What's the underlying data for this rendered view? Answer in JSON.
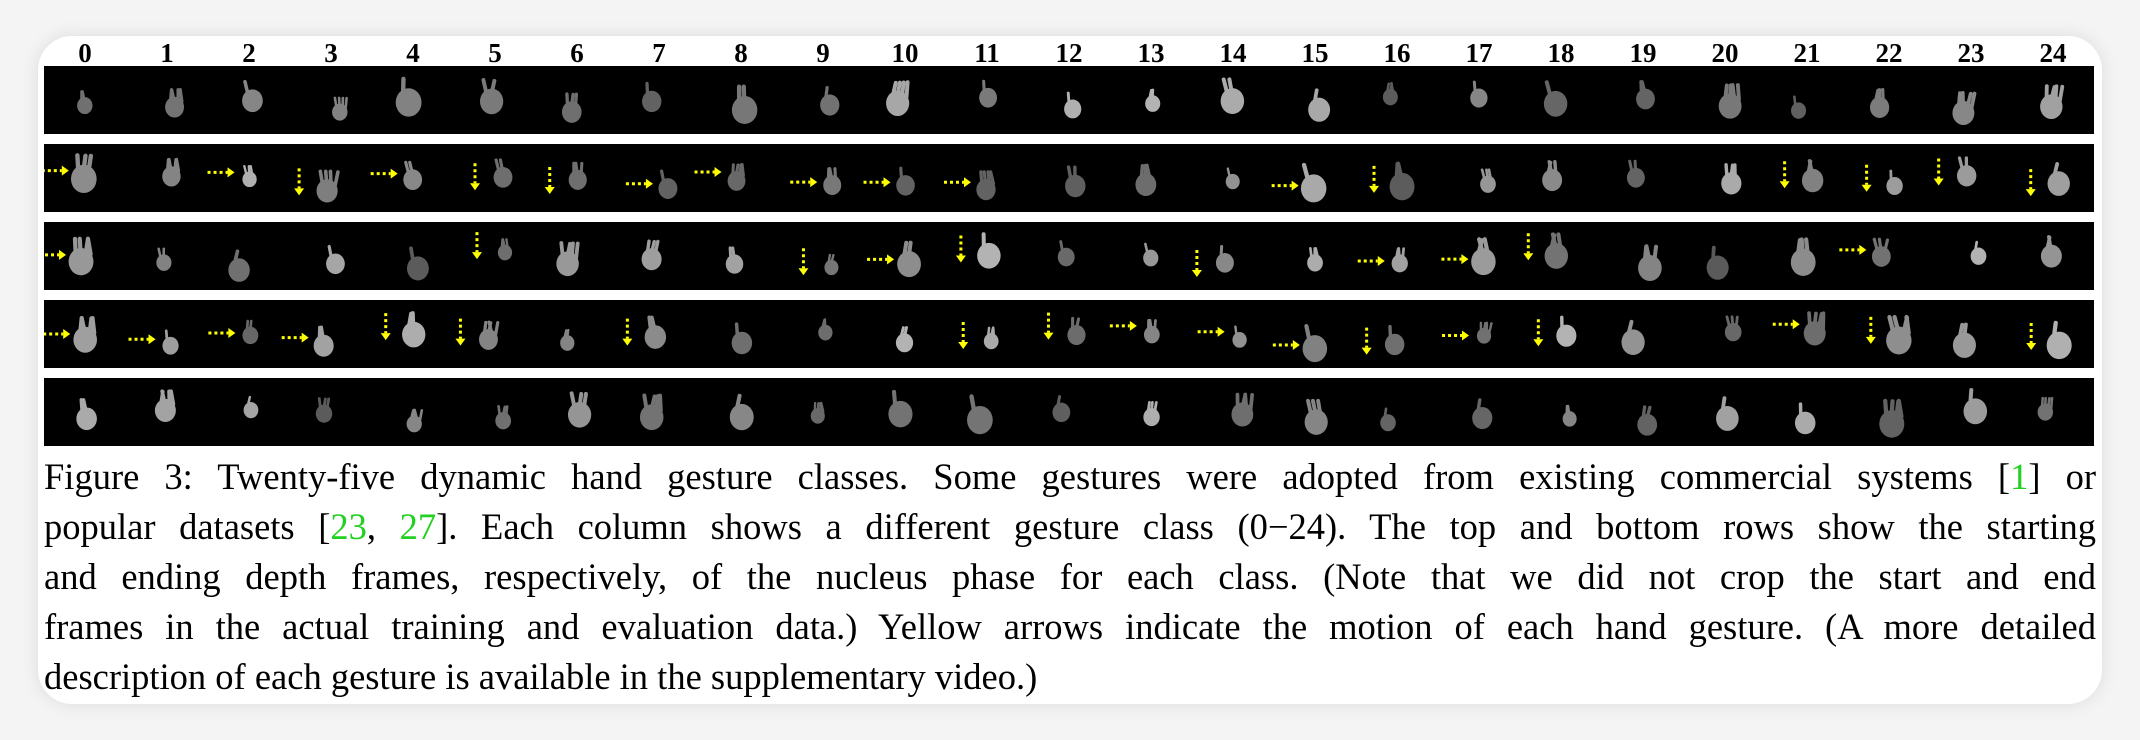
{
  "figure": {
    "column_labels": [
      "0",
      "1",
      "2",
      "3",
      "4",
      "5",
      "6",
      "7",
      "8",
      "9",
      "10",
      "11",
      "12",
      "13",
      "14",
      "15",
      "16",
      "17",
      "18",
      "19",
      "20",
      "21",
      "22",
      "23",
      "24"
    ],
    "rows": 5,
    "caption": {
      "lines": [
        [
          {
            "text": "Figure 3: Twenty-five dynamic hand gesture classes. Some gestures were adopted from existing commercial systems ["
          },
          {
            "text": "1",
            "cite": true
          },
          {
            "text": "] or"
          }
        ],
        [
          {
            "text": "popular datasets ["
          },
          {
            "text": "23",
            "cite": true
          },
          {
            "text": ", "
          },
          {
            "text": "27",
            "cite": true
          },
          {
            "text": "]. Each column shows a different gesture class (0−24). The top and bottom rows show the starting"
          }
        ],
        [
          {
            "text": "and ending depth frames, respectively, of the nucleus phase for each class.  (Note that we did not crop the start and end"
          }
        ],
        [
          {
            "text": "frames in the actual training and evaluation data.) Yellow arrows indicate the motion of each hand gesture. (A more detailed"
          }
        ],
        [
          {
            "text": "description of each gesture is available in the supplementary video.)"
          }
        ]
      ]
    },
    "colors": {
      "frame_background": "#000000",
      "motion_arrow": "#ffff00",
      "citation": "#22d022",
      "hand_depth": "#8a8a8a"
    }
  }
}
